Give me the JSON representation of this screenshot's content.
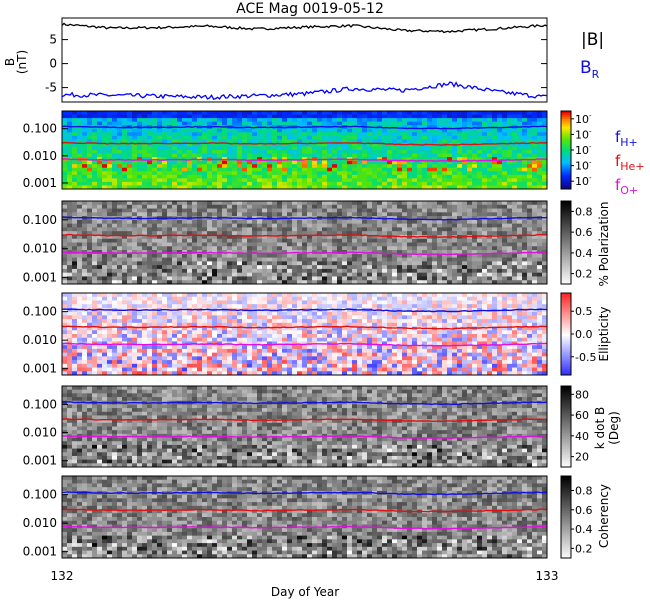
{
  "title": "ACE Mag 0019-05-12",
  "xlabel": "Day of Year",
  "x_ticks": [
    "132",
    "133"
  ],
  "legend": {
    "b_total": "|B|",
    "b_radial": "B",
    "b_radial_sub": "R",
    "f_h_main": "f",
    "f_h_sub": "H+",
    "f_he_main": "f",
    "f_he_sub": "He+",
    "f_o_main": "f",
    "f_o_sub": "O+"
  },
  "colors": {
    "b_total": "#000000",
    "b_radial": "#0000ff",
    "f_h": "#1010e0",
    "f_he": "#e01010",
    "f_o": "#e010e0"
  },
  "freq_tick_labels": [
    "0.100",
    "0.010",
    "0.001"
  ],
  "chart_data": [
    {
      "type": "line",
      "panel": "magnetic-field",
      "ylabel": "B",
      "yunit": "(nT)",
      "yticks": [
        "5",
        "0",
        "-5"
      ],
      "ylim": [
        -8,
        9.5
      ],
      "xlim": [
        132,
        133
      ],
      "series": [
        {
          "name": "|B|",
          "x": [
            132.0,
            132.1,
            132.2,
            132.3,
            132.4,
            132.5,
            132.6,
            132.7,
            132.8,
            132.9,
            133.0
          ],
          "values": [
            8.2,
            7.4,
            7.5,
            7.8,
            7.2,
            7.6,
            7.9,
            6.9,
            6.7,
            7.3,
            8.0
          ]
        },
        {
          "name": "B",
          "x": [
            132.0,
            132.1,
            132.2,
            132.3,
            132.4,
            132.5,
            132.6,
            132.7,
            132.8,
            132.9,
            133.0
          ],
          "values": [
            -6.5,
            -6.6,
            -6.8,
            -7.0,
            -6.7,
            -6.3,
            -5.2,
            -5.6,
            -4.2,
            -5.9,
            -7.0
          ]
        }
      ]
    },
    {
      "type": "heatmap",
      "panel": "power-spectrum",
      "ylog": true,
      "ylim": [
        0.0006,
        0.45
      ],
      "colorbar_ticks": [
        "10",
        "10",
        "10",
        "10",
        "10"
      ],
      "colorbar_ticks_extra": [
        "-",
        "-",
        "-",
        "-",
        "-"
      ]
    },
    {
      "type": "heatmap",
      "panel": "polarization",
      "ylog": true,
      "ylim": [
        0.0006,
        0.45
      ],
      "colorbar_label": "% Polarization",
      "colorbar_ticks": [
        "0.8",
        "0.6",
        "0.4",
        "0.2"
      ],
      "colorbar_range": [
        0.1,
        0.9
      ]
    },
    {
      "type": "heatmap",
      "panel": "ellipticity",
      "ylog": true,
      "ylim": [
        0.0006,
        0.45
      ],
      "colorbar_label": "Ellipticity",
      "colorbar_ticks": [
        "0.5",
        "0.0",
        "-0.5"
      ],
      "colorbar_range": [
        -0.9,
        0.9
      ]
    },
    {
      "type": "heatmap",
      "panel": "wave-normal-angle",
      "ylog": true,
      "ylim": [
        0.0006,
        0.45
      ],
      "colorbar_label": "k dot B",
      "colorbar_unit": "(Deg)",
      "colorbar_ticks": [
        "80",
        "60",
        "40",
        "20"
      ],
      "colorbar_range": [
        10,
        88
      ]
    },
    {
      "type": "heatmap",
      "panel": "coherency",
      "ylog": true,
      "ylim": [
        0.0006,
        0.45
      ],
      "colorbar_label": "Coherency",
      "colorbar_ticks": [
        "0.8",
        "0.6",
        "0.4",
        "0.2"
      ],
      "colorbar_range": [
        0.1,
        0.95
      ]
    }
  ],
  "gyrofrequencies": {
    "x": [
      132.0,
      132.1,
      132.2,
      132.3,
      132.4,
      132.5,
      132.6,
      132.7,
      132.8,
      132.9,
      133.0
    ],
    "f_h": [
      0.122,
      0.113,
      0.114,
      0.118,
      0.11,
      0.115,
      0.12,
      0.105,
      0.102,
      0.111,
      0.122
    ],
    "f_he": [
      0.0305,
      0.0283,
      0.0285,
      0.0295,
      0.0275,
      0.0288,
      0.03,
      0.0263,
      0.0255,
      0.0278,
      0.0305
    ],
    "f_o": [
      0.0076,
      0.0071,
      0.0071,
      0.0074,
      0.0069,
      0.0072,
      0.0075,
      0.0066,
      0.0064,
      0.0069,
      0.0076
    ]
  }
}
